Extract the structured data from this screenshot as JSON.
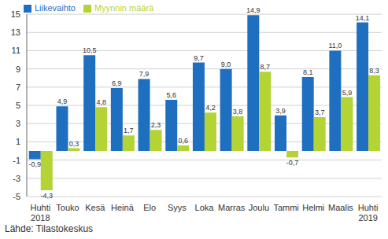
{
  "chart_data": {
    "type": "bar",
    "categories": [
      "Huhti 2018",
      "Touko",
      "Kesä",
      "Heinä",
      "Elo",
      "Syys",
      "Loka",
      "Marras",
      "Joulu",
      "Tammi",
      "Helmi",
      "Maalis",
      "Huhti 2019"
    ],
    "series": [
      {
        "name": "Liikevaihto",
        "color": "#1f6fc0",
        "values": [
          -0.9,
          4.9,
          10.5,
          6.9,
          7.9,
          5.6,
          9.7,
          9.0,
          14.9,
          3.9,
          8.1,
          11.0,
          14.1
        ],
        "value_labels": [
          "-0,9",
          "4,9",
          "10,5",
          "6,9",
          "7,9",
          "5,6",
          "9,7",
          "9,0",
          "14,9",
          "3,9",
          "8,1",
          "11,0",
          "14,1"
        ]
      },
      {
        "name": "Myynnin määrä",
        "color": "#b4d335",
        "values": [
          -4.3,
          0.3,
          4.8,
          1.7,
          2.3,
          0.6,
          4.2,
          3.8,
          8.7,
          -0.7,
          3.7,
          5.9,
          8.3
        ],
        "value_labels": [
          "-4,3",
          "0,3",
          "4,8",
          "1,7",
          "2,3",
          "0,6",
          "4,2",
          "3,8",
          "8,7",
          "-0,7",
          "3,7",
          "5,9",
          "8,3"
        ]
      }
    ],
    "ylim": [
      -5,
      15
    ],
    "yticks": [
      -5,
      -3,
      -1,
      1,
      3,
      5,
      7,
      9,
      11,
      13,
      15
    ],
    "grid": true,
    "legend": "top-left",
    "data_labels": true,
    "source": "Lähde: Tilastokeskus"
  }
}
